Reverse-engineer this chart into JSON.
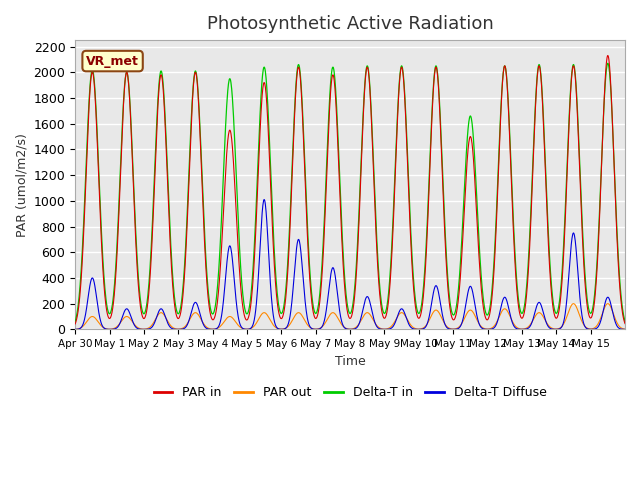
{
  "title": "Photosynthetic Active Radiation",
  "ylabel": "PAR (umol/m2/s)",
  "xlabel": "Time",
  "label_box": "VR_met",
  "ylim": [
    0,
    2250
  ],
  "yticks": [
    0,
    200,
    400,
    600,
    800,
    1000,
    1200,
    1400,
    1600,
    1800,
    2000,
    2200
  ],
  "n_days": 16,
  "colors": {
    "PAR_in": "#dd0000",
    "PAR_out": "#ff8800",
    "Delta_T_in": "#00cc00",
    "Delta_T_Diffuse": "#0000dd"
  },
  "legend_labels": [
    "PAR in",
    "PAR out",
    "Delta-T in",
    "Delta-T Diffuse"
  ],
  "x_tick_labels": [
    "Apr 30",
    "May 1",
    "May 2",
    "May 3",
    "May 4",
    "May 5",
    "May 6",
    "May 7",
    "May 8",
    "May 9",
    "May 10",
    "May 11",
    "May 12",
    "May 13",
    "May 14",
    "May 15"
  ],
  "x_tick_positions": [
    0,
    1,
    2,
    3,
    4,
    5,
    6,
    7,
    8,
    9,
    10,
    11,
    12,
    13,
    14,
    15
  ],
  "background_color": "#e8e8e8",
  "grid_color": "#ffffff",
  "par_in_peaks": [
    2000,
    2000,
    1980,
    2000,
    1550,
    1920,
    2040,
    1980,
    2040,
    2040,
    2040,
    1500,
    2050,
    2050,
    2050,
    2130
  ],
  "par_out_peaks": [
    100,
    100,
    130,
    130,
    100,
    130,
    130,
    130,
    130,
    130,
    150,
    150,
    160,
    130,
    200,
    200
  ],
  "dt_in_peaks": [
    2020,
    2000,
    2010,
    2010,
    1950,
    2040,
    2060,
    2040,
    2050,
    2050,
    2050,
    1660,
    2050,
    2060,
    2060,
    2070
  ],
  "dt_diff_peaks": [
    400,
    160,
    160,
    210,
    650,
    1010,
    700,
    480,
    255,
    160,
    340,
    335,
    250,
    210,
    750,
    250
  ]
}
